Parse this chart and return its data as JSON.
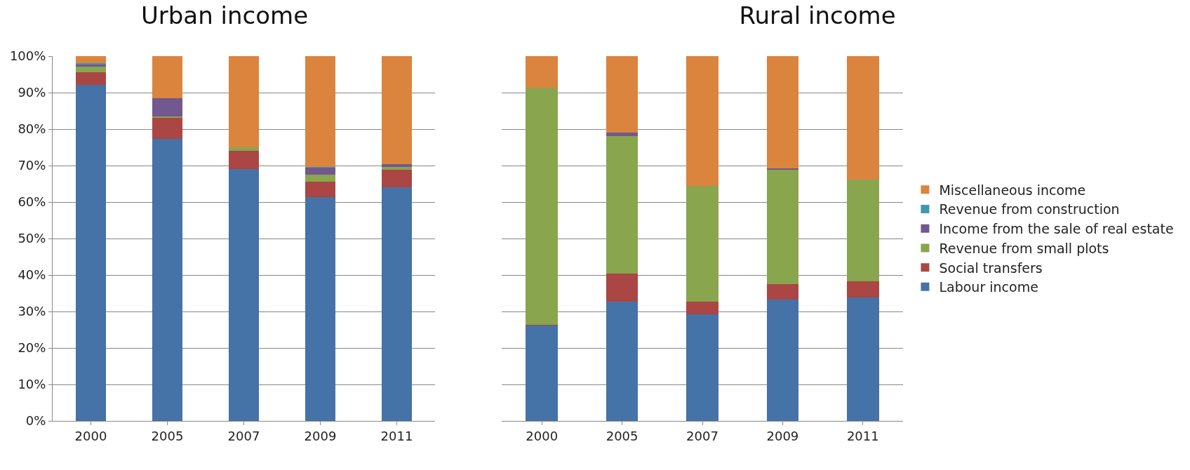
{
  "chart_data": [
    {
      "type": "bar",
      "title": "Urban income",
      "stacked": true,
      "grid": "y",
      "legend": false,
      "categories": [
        "2000",
        "2005",
        "2007",
        "2009",
        "2011"
      ],
      "ylim": [
        0,
        100
      ],
      "yticks": [
        {
          "value": 0,
          "label": "0%"
        },
        {
          "value": 10,
          "label": "10%"
        },
        {
          "value": 20,
          "label": "20%"
        },
        {
          "value": 30,
          "label": "30%"
        },
        {
          "value": 40,
          "label": "40%"
        },
        {
          "value": 50,
          "label": "50%"
        },
        {
          "value": 60,
          "label": "60%"
        },
        {
          "value": 70,
          "label": "70%"
        },
        {
          "value": 80,
          "label": "80%"
        },
        {
          "value": 90,
          "label": "90%"
        },
        {
          "value": 100,
          "label": "100%"
        }
      ],
      "series": [
        {
          "color": "#4572a7",
          "values": [
            92.1,
            77.4,
            69.0,
            61.3,
            64.0
          ]
        },
        {
          "color": "#aa4643",
          "values": [
            3.5,
            5.6,
            5.0,
            4.3,
            4.8
          ]
        },
        {
          "color": "#89a54e",
          "values": [
            1.6,
            0.5,
            1.0,
            1.9,
            0.8
          ]
        },
        {
          "color": "#71588f",
          "values": [
            0.5,
            4.9,
            0,
            1.9,
            0.8
          ]
        },
        {
          "color": "#4198af",
          "values": [
            0.3,
            0,
            0,
            0.3,
            0
          ]
        },
        {
          "color": "#db843d",
          "values": [
            2.0,
            11.6,
            25.0,
            30.3,
            29.6
          ]
        }
      ]
    },
    {
      "type": "bar",
      "title": "Rural income",
      "stacked": true,
      "grid": "y",
      "legend": "right",
      "categories": [
        "2000",
        "2005",
        "2007",
        "2009",
        "2011"
      ],
      "ylim": [
        0,
        100
      ],
      "yticks": [
        {
          "value": 0,
          "label": null
        },
        {
          "value": 10,
          "label": null
        },
        {
          "value": 20,
          "label": null
        },
        {
          "value": 30,
          "label": null
        },
        {
          "value": 40,
          "label": null
        },
        {
          "value": 50,
          "label": null
        },
        {
          "value": 60,
          "label": null
        },
        {
          "value": 70,
          "label": null
        },
        {
          "value": 80,
          "label": null
        },
        {
          "value": 90,
          "label": null
        },
        {
          "value": 100,
          "label": null
        }
      ],
      "tick_labels": "x",
      "series": [
        {
          "name": "Labour income",
          "color": "#4572a7",
          "values": [
            26.1,
            32.7,
            29.2,
            33.2,
            33.9
          ]
        },
        {
          "name": "Social transfers",
          "color": "#aa4643",
          "values": [
            0.3,
            7.7,
            3.5,
            4.3,
            4.3
          ]
        },
        {
          "name": "Revenue from small plots",
          "color": "#89a54e",
          "values": [
            65.0,
            37.6,
            31.7,
            31.3,
            28.0
          ]
        },
        {
          "name": "Income from the sale of real estate",
          "color": "#71588f",
          "values": [
            0,
            1.1,
            0,
            0.5,
            0
          ]
        },
        {
          "name": "Revenue from construction",
          "color": "#4198af",
          "values": [
            0,
            0,
            0,
            0,
            0
          ]
        },
        {
          "name": "Miscellaneous income",
          "color": "#db843d",
          "values": [
            8.6,
            20.9,
            35.6,
            30.7,
            33.8
          ]
        }
      ]
    }
  ]
}
